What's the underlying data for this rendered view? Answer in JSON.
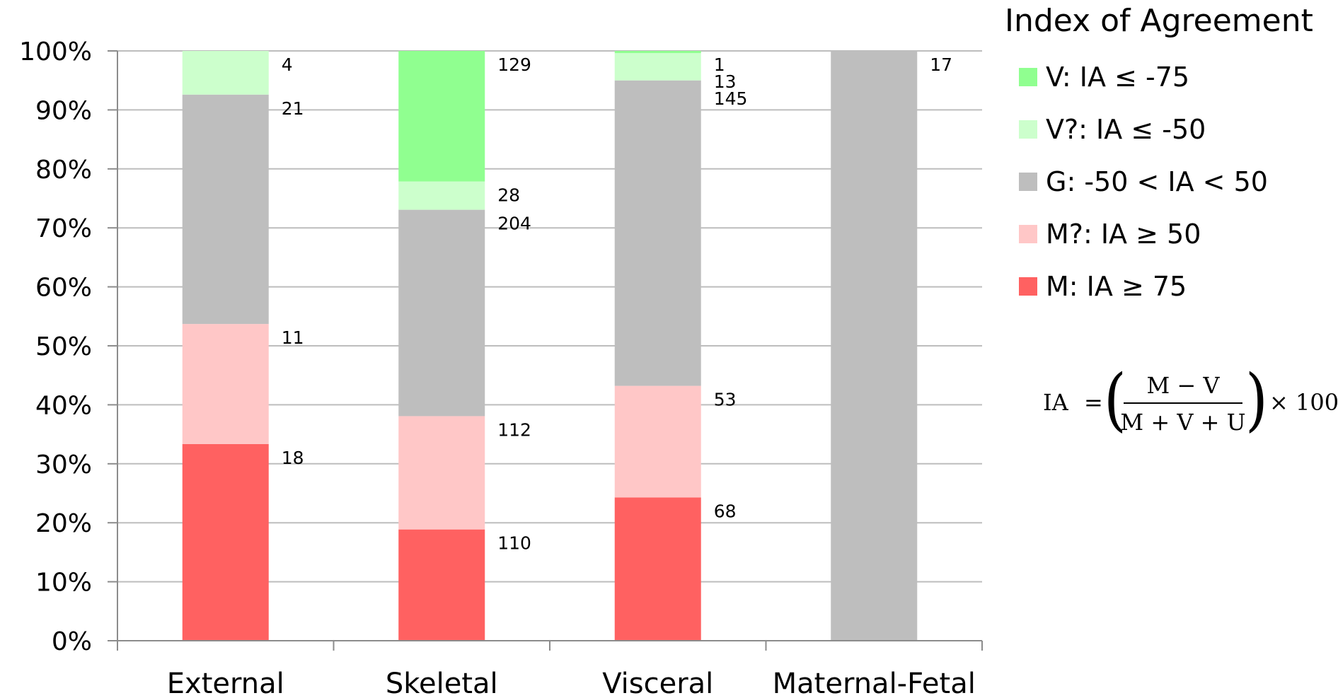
{
  "chart_data": {
    "type": "bar",
    "stacked": true,
    "normalized": true,
    "categories": [
      "External",
      "Skeletal",
      "Visceral",
      "Maternal-Fetal"
    ],
    "y_ticks": [
      "0%",
      "10%",
      "20%",
      "30%",
      "40%",
      "50%",
      "60%",
      "70%",
      "80%",
      "90%",
      "100%"
    ],
    "ylim": [
      0,
      100
    ],
    "grid": true,
    "legend_position": "right",
    "legend_title": "Index of Agreement",
    "series": [
      {
        "name": "M: IA ≥ 75",
        "color": "#ff6161",
        "values": [
          18,
          110,
          68,
          0
        ]
      },
      {
        "name": "M?: IA ≥ 50",
        "color": "#ffc7c7",
        "values": [
          11,
          112,
          53,
          0
        ]
      },
      {
        "name": "G: -50 < IA < 50",
        "color": "#bebebe",
        "values": [
          21,
          204,
          145,
          17
        ]
      },
      {
        "name": "V?: IA ≤ -50",
        "color": "#ccffcc",
        "values": [
          4,
          28,
          13,
          0
        ]
      },
      {
        "name": "V: IA ≤ -75",
        "color": "#90ff90",
        "values": [
          0,
          129,
          1,
          0
        ]
      }
    ],
    "legend_order": [
      4,
      3,
      2,
      1,
      0
    ],
    "formula": {
      "lhs": "IA",
      "equals": "=",
      "numerator": "M − V",
      "denominator": "M + V + U",
      "multiplier": "× 100",
      "open_paren": "(",
      "close_paren": ")"
    }
  }
}
